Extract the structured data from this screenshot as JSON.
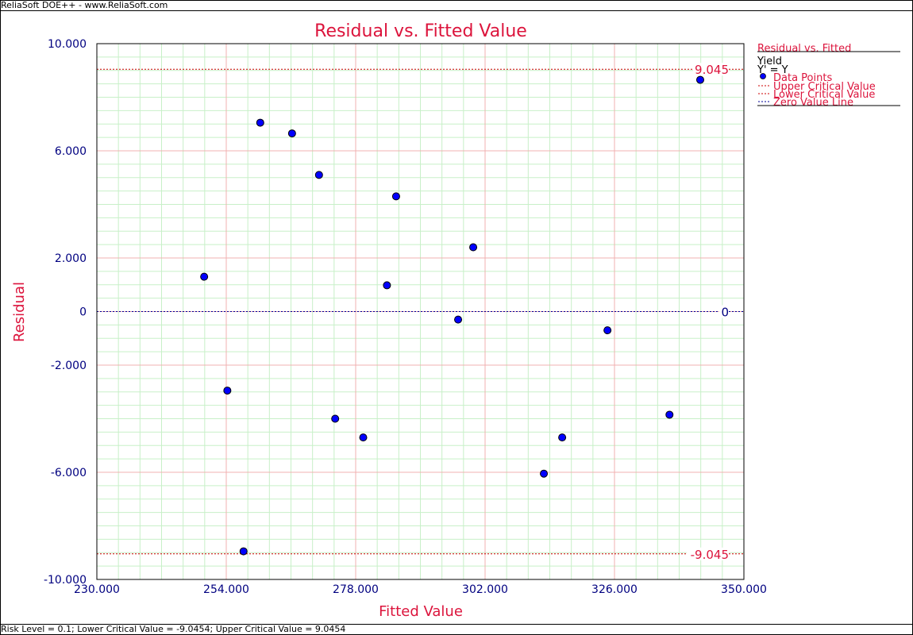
{
  "window": {
    "header_text": "ReliaSoft DOE++ - www.ReliaSoft.com",
    "footer_text": "Risk Level = 0.1; Lower Critical Value = -9.0454; Upper Critical Value = 9.0454"
  },
  "chart_data": {
    "type": "scatter",
    "title": "Residual vs. Fitted Value",
    "xlabel": "Fitted Value",
    "ylabel": "Residual",
    "xlim": [
      230,
      350
    ],
    "ylim": [
      -10,
      10
    ],
    "x_ticks": [
      230,
      254,
      278,
      302,
      326,
      350
    ],
    "x_tick_labels": [
      "230.000",
      "254.000",
      "278.000",
      "302.000",
      "326.000",
      "350.000"
    ],
    "y_ticks": [
      10,
      6,
      2,
      0,
      -2,
      -6,
      -10
    ],
    "y_tick_labels": [
      "10.000",
      "6.000",
      "2.000",
      "0",
      "-2.000",
      "-6.000",
      "-10.000"
    ],
    "grid": true,
    "upper_critical_value": 9.045,
    "lower_critical_value": -9.045,
    "upper_critical_label": "9.045",
    "lower_critical_label": "-9.045",
    "zero_label": "0",
    "colors": {
      "points": "#0000ff",
      "critical_lines": "#cc0000",
      "zero_line": "#000099",
      "major_grid": "#f0b0b0",
      "minor_grid": "#c8f0c8",
      "title": "#dc143c",
      "ticks": "#000080"
    },
    "legend": {
      "position": "right",
      "title": "Residual vs. Fitted",
      "subtitle": "Yield",
      "subtitle2": "Y' = Y",
      "entries": [
        "Data Points",
        "Upper Critical Value",
        "Lower Critical Value",
        "Zero Value Line"
      ]
    },
    "points": [
      {
        "x": 249.9,
        "y": 1.3
      },
      {
        "x": 254.2,
        "y": -2.95
      },
      {
        "x": 257.2,
        "y": -8.95
      },
      {
        "x": 260.3,
        "y": 7.05
      },
      {
        "x": 266.2,
        "y": 6.65
      },
      {
        "x": 271.2,
        "y": 5.1
      },
      {
        "x": 274.2,
        "y": -4.0
      },
      {
        "x": 279.4,
        "y": -4.7
      },
      {
        "x": 283.8,
        "y": 0.98
      },
      {
        "x": 285.5,
        "y": 4.3
      },
      {
        "x": 297.0,
        "y": -0.3
      },
      {
        "x": 299.8,
        "y": 2.4
      },
      {
        "x": 312.9,
        "y": -6.05
      },
      {
        "x": 316.3,
        "y": -4.7
      },
      {
        "x": 324.7,
        "y": -0.7
      },
      {
        "x": 336.2,
        "y": -3.85
      },
      {
        "x": 341.9,
        "y": 8.65
      }
    ]
  }
}
